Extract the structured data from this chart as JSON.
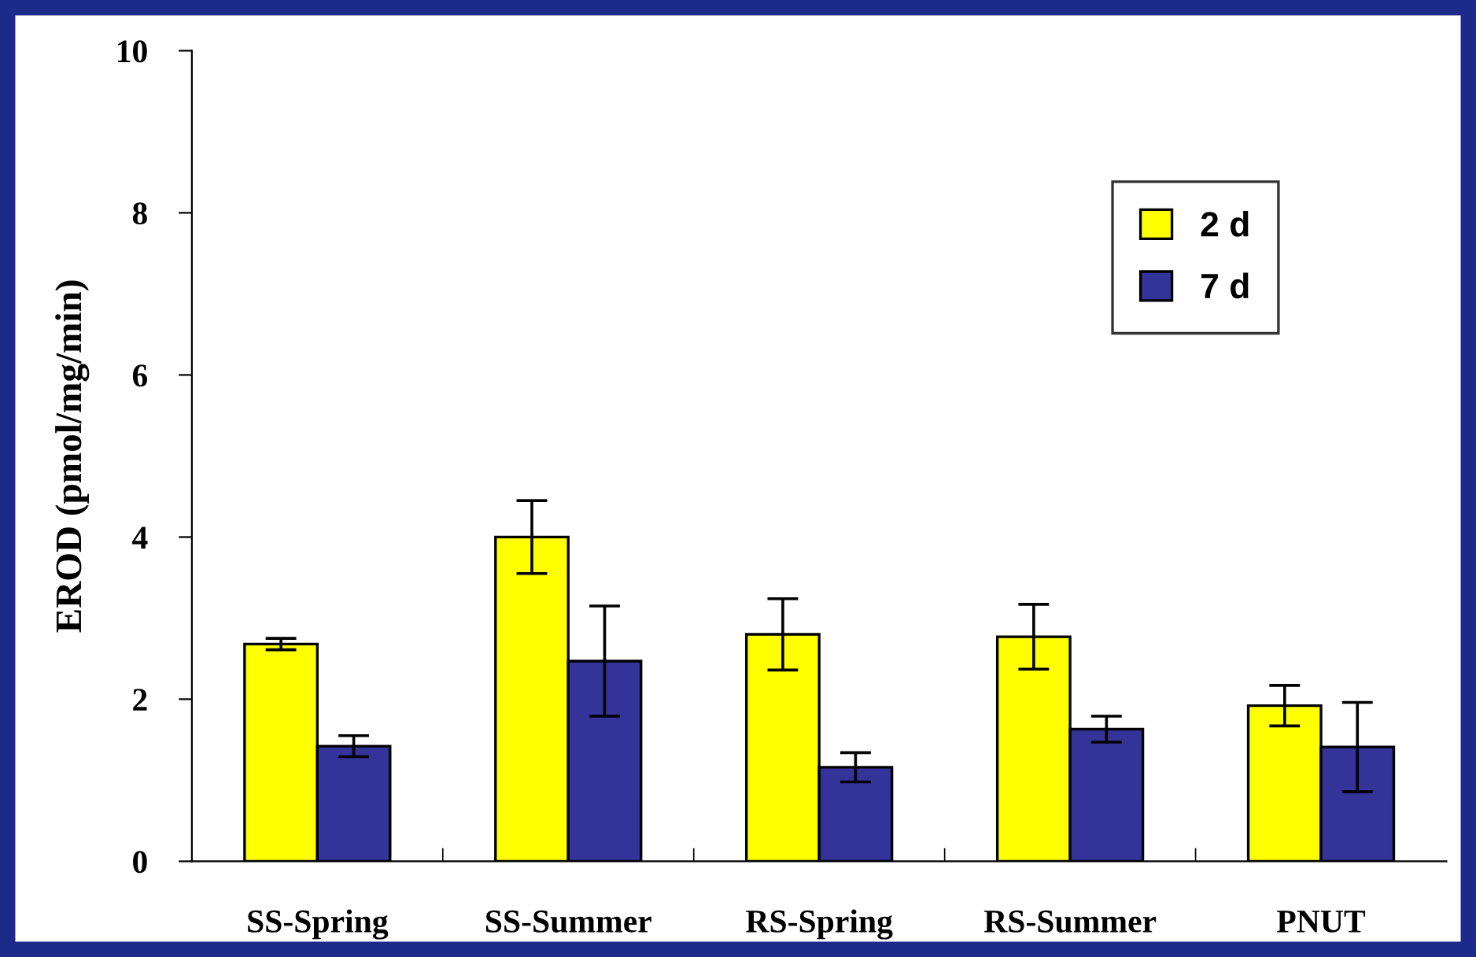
{
  "chart_data": {
    "type": "bar",
    "ylabel": "EROD (pmol/mg/min)",
    "categories": [
      "SS-Spring",
      "SS-Summer",
      "RS-Spring",
      "RS-Summer",
      "PNUT"
    ],
    "series": [
      {
        "name": "2 d",
        "color": "#ffff00",
        "values": [
          2.68,
          4.0,
          2.8,
          2.77,
          1.92
        ],
        "errors": [
          0.07,
          0.45,
          0.44,
          0.4,
          0.25
        ]
      },
      {
        "name": "7 d",
        "color": "#333399",
        "values": [
          1.42,
          2.47,
          1.16,
          1.63,
          1.41
        ],
        "errors": [
          0.13,
          0.68,
          0.18,
          0.16,
          0.55
        ]
      }
    ],
    "ylim": [
      0,
      10
    ],
    "yticks": [
      0,
      2,
      4,
      6,
      8,
      10
    ],
    "grid": false,
    "legend": "top right"
  }
}
